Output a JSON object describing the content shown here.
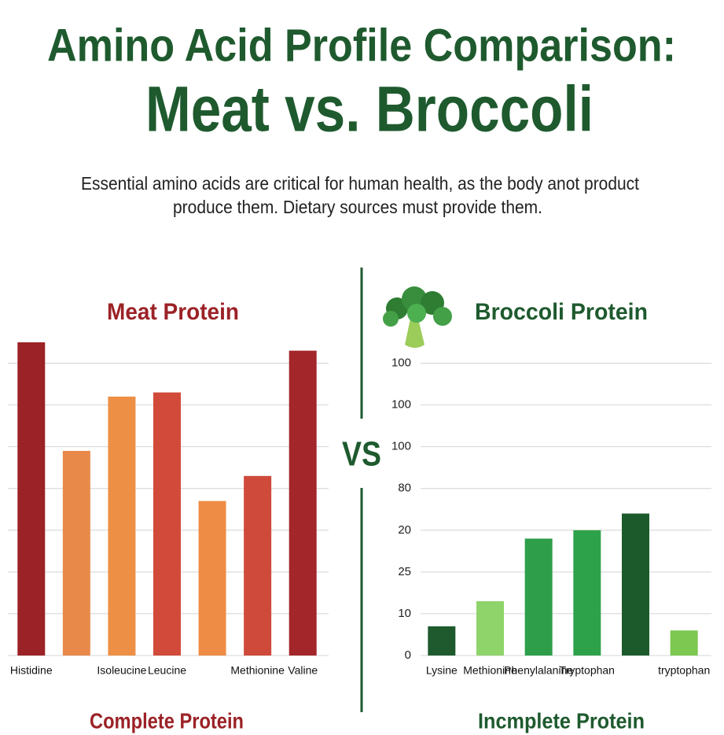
{
  "title": "Amino Acid Profile Comparison:",
  "subtitle_title": "Meat vs. Broccoli",
  "description": [
    "Essential amino acids are critical for human health, as the body anot product",
    "produce them. Dietary sources must provide them."
  ],
  "vs_label": "VS",
  "chart_data": [
    {
      "type": "bar",
      "title": "Meat Protein",
      "footer": "Complete Protein",
      "categories": [
        "Histidine",
        null,
        "Isoleucine",
        "Leucine",
        null,
        "Methionine",
        "Valine"
      ],
      "values": [
        7.5,
        4.9,
        6.2,
        6.3,
        3.7,
        4.3,
        7.3
      ],
      "colors": [
        "#9b2226",
        "#e8894a",
        "#ed9045",
        "#d24a3a",
        "#ee8c45",
        "#cf4a3a",
        "#a3262a"
      ],
      "ylim": [
        0,
        7.5
      ],
      "yticks": [
        0,
        1,
        2,
        3,
        4,
        5,
        6,
        7
      ],
      "grid": true,
      "show_tick_labels": false
    },
    {
      "type": "bar",
      "title": "Broccoli Protein",
      "footer": "Incmplete Protein",
      "categories": [
        "Lysine",
        "Methionine",
        "Phenylalanine",
        "Tryptophan",
        null,
        "tryptophan"
      ],
      "values": [
        0.7,
        1.3,
        2.8,
        3.0,
        3.4,
        0.6
      ],
      "colors": [
        "#1e5a2e",
        "#8fd46a",
        "#2e9e4a",
        "#2ea24a",
        "#1c5a2c",
        "#7cc850"
      ],
      "ylim": [
        0,
        7.5
      ],
      "yticks": [
        0,
        {
          "value": 1,
          "label": "10"
        },
        {
          "value": 2,
          "label": "25"
        },
        {
          "value": 3,
          "label": "20"
        },
        {
          "value": 4,
          "label": "80"
        },
        {
          "value": 5,
          "label": "100"
        },
        {
          "value": 6,
          "label": "100"
        },
        {
          "value": 7,
          "label": "100"
        }
      ],
      "grid": true,
      "show_tick_labels": true
    }
  ]
}
